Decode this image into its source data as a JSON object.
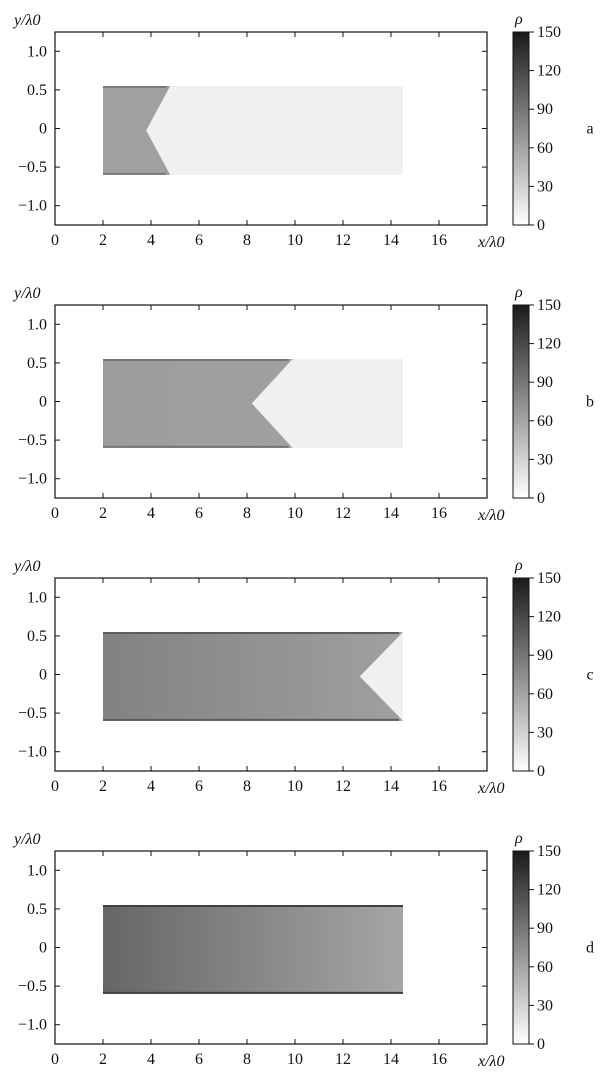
{
  "chart_data": [
    {
      "type": "heatmap",
      "panel": "a",
      "xlabel": "x/λ0",
      "ylabel": "y/λ0",
      "colorbar_label": "ρ",
      "xlim": [
        0,
        18
      ],
      "ylim": [
        -1.25,
        1.25
      ],
      "xticks": [
        0,
        2,
        4,
        6,
        8,
        10,
        12,
        14,
        16
      ],
      "yticks": [
        1.0,
        0.5,
        0,
        -0.5,
        -1.0
      ],
      "ytick_labels": [
        "1.0",
        "0.5",
        "0",
        "−0.5",
        "−1.0"
      ],
      "colorbar_ticks": [
        150,
        120,
        90,
        60,
        30,
        0
      ],
      "colorbar_range": [
        0,
        150
      ],
      "target_region": {
        "x": [
          2,
          14.5
        ],
        "y": [
          -0.6,
          0.55
        ],
        "background_density": 10
      },
      "dense_region": {
        "x_start": 2,
        "front_tip_x": 3.8,
        "front_edge_x": 4.8,
        "density_left": 62,
        "density_right": 62
      }
    },
    {
      "type": "heatmap",
      "panel": "b",
      "xlabel": "x/λ0",
      "ylabel": "y/λ0",
      "colorbar_label": "ρ",
      "xlim": [
        0,
        18
      ],
      "ylim": [
        -1.25,
        1.25
      ],
      "xticks": [
        0,
        2,
        4,
        6,
        8,
        10,
        12,
        14,
        16
      ],
      "yticks": [
        1.0,
        0.5,
        0,
        -0.5,
        -1.0
      ],
      "ytick_labels": [
        "1.0",
        "0.5",
        "0",
        "−0.5",
        "−1.0"
      ],
      "colorbar_ticks": [
        150,
        120,
        90,
        60,
        30,
        0
      ],
      "colorbar_range": [
        0,
        150
      ],
      "target_region": {
        "x": [
          2,
          14.5
        ],
        "y": [
          -0.6,
          0.55
        ],
        "background_density": 10
      },
      "dense_region": {
        "x_start": 2,
        "front_tip_x": 8.2,
        "front_edge_x": 9.9,
        "density_left": 65,
        "density_right": 62
      }
    },
    {
      "type": "heatmap",
      "panel": "c",
      "xlabel": "x/λ0",
      "ylabel": "y/λ0",
      "colorbar_label": "ρ",
      "xlim": [
        0,
        18
      ],
      "ylim": [
        -1.25,
        1.25
      ],
      "xticks": [
        0,
        2,
        4,
        6,
        8,
        10,
        12,
        14,
        16
      ],
      "yticks": [
        1.0,
        0.5,
        0,
        -0.5,
        -1.0
      ],
      "ytick_labels": [
        "1.0",
        "0.5",
        "0",
        "−0.5",
        "−1.0"
      ],
      "colorbar_ticks": [
        150,
        120,
        90,
        60,
        30,
        0
      ],
      "colorbar_range": [
        0,
        150
      ],
      "target_region": {
        "x": [
          2,
          14.5
        ],
        "y": [
          -0.6,
          0.55
        ],
        "background_density": 10
      },
      "dense_region": {
        "x_start": 2,
        "front_tip_x": 12.7,
        "front_edge_x": 14.5,
        "density_left": 82,
        "density_right": 62
      }
    },
    {
      "type": "heatmap",
      "panel": "d",
      "xlabel": "x/λ0",
      "ylabel": "y/λ0",
      "colorbar_label": "ρ",
      "xlim": [
        0,
        18
      ],
      "ylim": [
        -1.25,
        1.25
      ],
      "xticks": [
        0,
        2,
        4,
        6,
        8,
        10,
        12,
        14,
        16
      ],
      "yticks": [
        1.0,
        0.5,
        0,
        -0.5,
        -1.0
      ],
      "ytick_labels": [
        "1.0",
        "0.5",
        "0",
        "−0.5",
        "−1.0"
      ],
      "colorbar_ticks": [
        150,
        120,
        90,
        60,
        30,
        0
      ],
      "colorbar_range": [
        0,
        150
      ],
      "target_region": {
        "x": [
          2,
          14.5
        ],
        "y": [
          -0.6,
          0.55
        ],
        "background_density": 10
      },
      "dense_region": {
        "x_start": 2,
        "front_tip_x": 14.5,
        "front_edge_x": 14.5,
        "density_left": 100,
        "density_right": 58
      }
    }
  ],
  "colors": {
    "axis": "#111111",
    "colormap_low": "#ffffff",
    "colormap_high": "#1a1a1a"
  }
}
